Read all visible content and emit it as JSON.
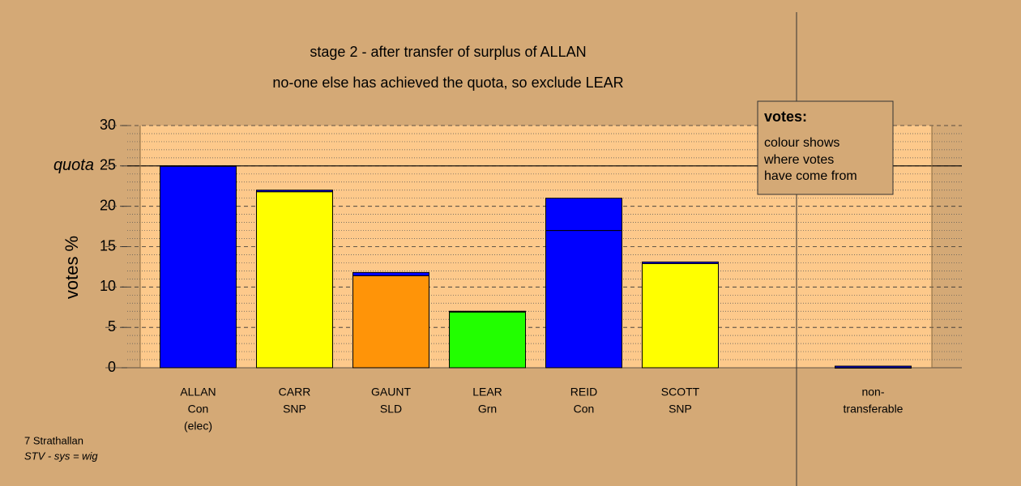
{
  "chart_data": {
    "type": "stacked-bar",
    "title": "stage 2 - after transfer of surplus of ALLAN",
    "subtitle": "no-one else has achieved the quota, so exclude LEAR",
    "y_label": "votes %",
    "quota": 25,
    "quota_label": "quota",
    "categories": [
      [
        "ALLAN",
        "Con",
        "(elec)"
      ],
      [
        "CARR",
        "SNP"
      ],
      [
        "GAUNT",
        "SLD"
      ],
      [
        "LEAR",
        "Grn"
      ],
      [
        "REID",
        "Con"
      ],
      [
        "SCOTT",
        "SNP"
      ],
      null,
      [
        "non-",
        "transferable"
      ]
    ],
    "series": [
      {
        "color": [
          "#0000ff",
          "#ffff00",
          "#ff9408",
          "#22ff00",
          "#0000ff",
          "#ffff00",
          null,
          "#0000ff"
        ],
        "values": [
          25,
          21.8,
          11.4,
          6.9,
          17,
          12.9,
          null,
          0
        ]
      },
      {
        "color": "#0000ff",
        "values": [
          0,
          0.2,
          0.4,
          0.1,
          4,
          0.2,
          null,
          0.2
        ]
      }
    ],
    "ylim": [
      0,
      30
    ],
    "yticks": [
      0,
      5,
      10,
      15,
      20,
      25,
      30
    ],
    "grid": true,
    "legend": {
      "title": "votes:",
      "lines": [
        "colour shows",
        "where votes",
        "have come from"
      ]
    },
    "footer": [
      "7 Strathallan",
      "STV - sys = wig"
    ]
  }
}
